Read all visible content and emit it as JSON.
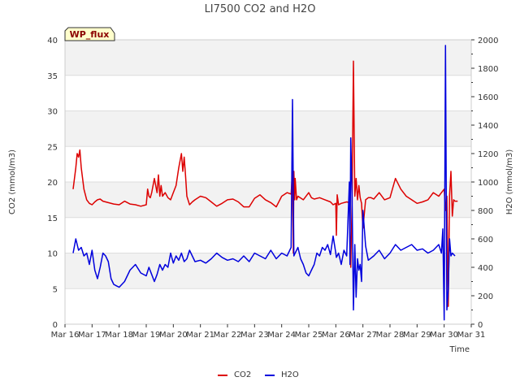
{
  "chart_data": {
    "type": "line",
    "title": "LI7500 CO2 and H2O",
    "xlabel": "Time",
    "ylabel_left": "CO2 (mmol/m3)",
    "ylabel_right": "H2O (mmol/m3)",
    "badge": "WP_flux",
    "x_ticks": [
      "Mar 16",
      "Mar 17",
      "Mar 18",
      "Mar 19",
      "Mar 20",
      "Mar 21",
      "Mar 22",
      "Mar 23",
      "Mar 24",
      "Mar 25",
      "Mar 26",
      "Mar 27",
      "Mar 28",
      "Mar 29",
      "Mar 30",
      "Mar 31"
    ],
    "x_range_days": [
      0,
      15
    ],
    "ylim_left": [
      0,
      40
    ],
    "ylim_right": [
      0,
      2000
    ],
    "y_ticks_left": [
      0,
      5,
      10,
      15,
      20,
      25,
      30,
      35,
      40
    ],
    "y_ticks_right": [
      0,
      200,
      400,
      600,
      800,
      1000,
      1200,
      1400,
      1600,
      1800,
      2000
    ],
    "legend": [
      {
        "name": "CO2",
        "color": "#dd0000"
      },
      {
        "name": "H2O",
        "color": "#0000dd"
      }
    ],
    "series": [
      {
        "name": "CO2",
        "axis": "left",
        "color": "#dd0000",
        "x": [
          0.3,
          0.4,
          0.45,
          0.5,
          0.55,
          0.6,
          0.7,
          0.8,
          0.9,
          1.0,
          1.1,
          1.2,
          1.3,
          1.4,
          1.6,
          1.8,
          2.0,
          2.2,
          2.4,
          2.6,
          2.8,
          3.0,
          3.05,
          3.1,
          3.15,
          3.2,
          3.3,
          3.4,
          3.45,
          3.5,
          3.55,
          3.6,
          3.7,
          3.8,
          3.9,
          4.0,
          4.1,
          4.2,
          4.3,
          4.35,
          4.4,
          4.45,
          4.5,
          4.6,
          4.7,
          4.8,
          5.0,
          5.2,
          5.4,
          5.6,
          5.8,
          6.0,
          6.2,
          6.4,
          6.6,
          6.8,
          7.0,
          7.2,
          7.4,
          7.6,
          7.8,
          8.0,
          8.2,
          8.35,
          8.4,
          8.43,
          8.45,
          8.48,
          8.5,
          8.55,
          8.6,
          8.8,
          9.0,
          9.1,
          9.2,
          9.4,
          9.6,
          9.8,
          9.9,
          10.0,
          10.02,
          10.05,
          10.1,
          10.2,
          10.4,
          10.5,
          10.55,
          10.6,
          10.65,
          10.7,
          10.75,
          10.8,
          10.85,
          10.9,
          10.95,
          11.0,
          11.1,
          11.2,
          11.3,
          11.4,
          11.6,
          11.8,
          12.0,
          12.2,
          12.4,
          12.6,
          12.8,
          13.0,
          13.2,
          13.4,
          13.6,
          13.8,
          13.9,
          14.0,
          14.05,
          14.1,
          14.15,
          14.2,
          14.25,
          14.3,
          14.35,
          14.4,
          14.5
        ],
        "values": [
          19,
          22,
          24,
          23.5,
          24.5,
          22,
          19,
          17.5,
          17,
          16.8,
          17.2,
          17.5,
          17.6,
          17.3,
          17.1,
          16.9,
          16.8,
          17.3,
          16.9,
          16.8,
          16.6,
          16.8,
          19,
          18,
          17.8,
          18.5,
          20.5,
          18.5,
          21,
          18,
          19.5,
          18,
          18.5,
          17.8,
          17.5,
          18.5,
          19.5,
          22,
          24,
          21.5,
          23.5,
          21,
          18,
          16.8,
          17.2,
          17.5,
          18,
          17.8,
          17.2,
          16.6,
          17,
          17.5,
          17.6,
          17.2,
          16.5,
          16.5,
          17.7,
          18.2,
          17.5,
          17.1,
          16.5,
          18,
          18.5,
          18.3,
          21.5,
          10,
          21.5,
          17.5,
          20.5,
          17.5,
          18,
          17.5,
          18.5,
          17.8,
          17.6,
          17.8,
          17.5,
          17.2,
          16.8,
          17,
          12.5,
          18.2,
          16.8,
          17,
          17.2,
          17.1,
          8,
          17,
          37,
          18,
          20.5,
          17.5,
          19.5,
          17.8,
          17,
          13.5,
          17.5,
          17.8,
          17.8,
          17.6,
          18.5,
          17.5,
          17.8,
          20.5,
          19,
          18,
          17.5,
          17,
          17.2,
          17.5,
          18.5,
          18,
          18.5,
          19,
          16,
          18,
          2.5,
          18,
          21.5,
          15.2,
          17.5,
          17.3,
          17.3
        ]
      },
      {
        "name": "H2O",
        "axis": "right",
        "color": "#0000dd",
        "x": [
          0.3,
          0.4,
          0.5,
          0.6,
          0.7,
          0.8,
          0.9,
          1.0,
          1.1,
          1.2,
          1.3,
          1.4,
          1.5,
          1.6,
          1.7,
          1.8,
          1.9,
          2.0,
          2.2,
          2.4,
          2.6,
          2.8,
          3.0,
          3.1,
          3.2,
          3.3,
          3.4,
          3.5,
          3.6,
          3.7,
          3.8,
          3.9,
          4.0,
          4.1,
          4.2,
          4.3,
          4.4,
          4.5,
          4.6,
          4.8,
          5.0,
          5.2,
          5.4,
          5.6,
          5.8,
          6.0,
          6.2,
          6.4,
          6.6,
          6.8,
          7.0,
          7.2,
          7.4,
          7.6,
          7.8,
          8.0,
          8.2,
          8.35,
          8.4,
          8.45,
          8.5,
          8.6,
          8.7,
          8.8,
          8.9,
          9.0,
          9.1,
          9.2,
          9.3,
          9.4,
          9.5,
          9.6,
          9.7,
          9.8,
          9.9,
          10.0,
          10.02,
          10.05,
          10.1,
          10.2,
          10.3,
          10.4,
          10.5,
          10.52,
          10.55,
          10.6,
          10.65,
          10.7,
          10.75,
          10.8,
          10.85,
          10.9,
          10.95,
          11.0,
          11.1,
          11.2,
          11.4,
          11.6,
          11.8,
          12.0,
          12.2,
          12.4,
          12.6,
          12.8,
          13.0,
          13.2,
          13.4,
          13.6,
          13.8,
          13.9,
          13.95,
          14.0,
          14.05,
          14.1,
          14.15,
          14.2,
          14.25,
          14.3,
          14.4
        ],
        "values": [
          500,
          600,
          520,
          540,
          480,
          500,
          420,
          520,
          380,
          320,
          400,
          500,
          480,
          440,
          320,
          280,
          270,
          260,
          300,
          380,
          420,
          360,
          340,
          400,
          350,
          300,
          350,
          420,
          380,
          420,
          400,
          500,
          430,
          480,
          450,
          500,
          440,
          460,
          520,
          440,
          450,
          430,
          460,
          500,
          470,
          450,
          460,
          440,
          480,
          440,
          500,
          480,
          460,
          520,
          460,
          500,
          480,
          540,
          1580,
          480,
          500,
          540,
          460,
          420,
          360,
          340,
          380,
          420,
          500,
          480,
          540,
          520,
          560,
          490,
          620,
          500,
          470,
          480,
          500,
          420,
          520,
          480,
          1000,
          420,
          1310,
          900,
          100,
          560,
          190,
          460,
          380,
          420,
          300,
          800,
          550,
          450,
          480,
          520,
          460,
          500,
          560,
          520,
          540,
          560,
          520,
          530,
          500,
          520,
          560,
          500,
          670,
          30,
          1960,
          100,
          240,
          600,
          480,
          500,
          480
        ]
      }
    ]
  }
}
